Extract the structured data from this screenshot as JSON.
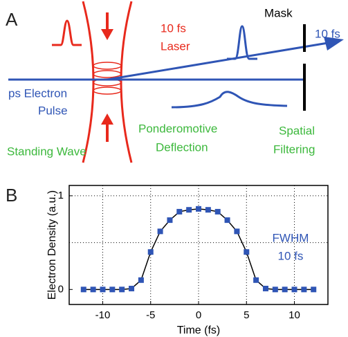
{
  "panels": {
    "a": "A",
    "b": "B"
  },
  "diagram": {
    "laser_duration": "10 fs",
    "laser": "Laser",
    "mask": "Mask",
    "out_duration": "10 fs",
    "electron_1": "ps Electron",
    "electron_2": "Pulse",
    "deflection_1": "Ponderomotive",
    "deflection_2": "Deflection",
    "standing_wave": "Standing Wave",
    "filter_1": "Spatial",
    "filter_2": "Filtering"
  },
  "chart_data": {
    "type": "line",
    "xlabel": "Time (fs)",
    "ylabel": "Electron Density (a.u.)",
    "x": [
      -12,
      -11,
      -10,
      -9,
      -8,
      -7,
      -6,
      -5,
      -4,
      -3,
      -2,
      -1,
      0,
      1,
      2,
      3,
      4,
      5,
      6,
      7,
      8,
      9,
      10,
      11,
      12
    ],
    "series": [
      {
        "color": "#2f55b5",
        "values": [
          0,
          0,
          0,
          0,
          0,
          0.01,
          0.1,
          0.4,
          0.62,
          0.74,
          0.83,
          0.85,
          0.86,
          0.85,
          0.83,
          0.74,
          0.62,
          0.4,
          0.1,
          0.01,
          0,
          0,
          0,
          0,
          0
        ]
      }
    ],
    "xlim": [
      -13.5,
      13.5
    ],
    "ylim": [
      -0.16,
      1.11
    ],
    "xticks": [
      -10,
      -5,
      0,
      5,
      10
    ],
    "yticks": [
      0,
      1
    ],
    "ygrid": [
      0.5,
      1
    ],
    "grid": true,
    "annotations": [
      "FWHM",
      "10 fs"
    ]
  }
}
